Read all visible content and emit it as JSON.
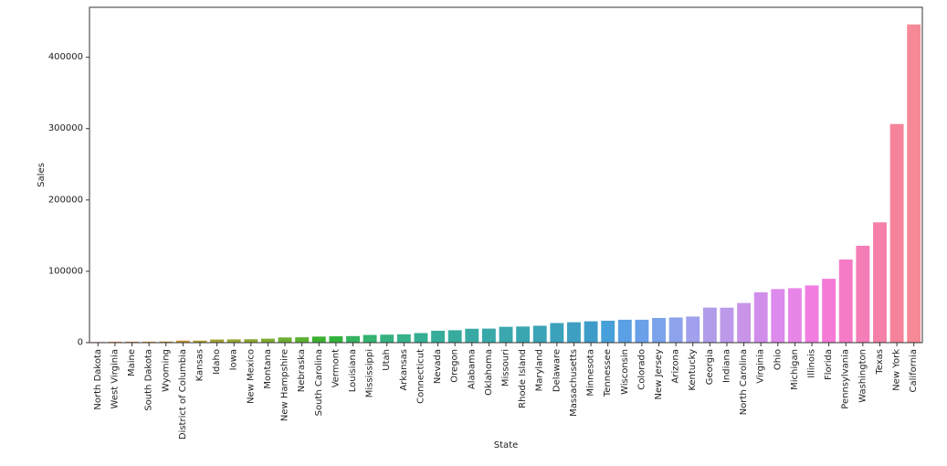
{
  "chart_data": {
    "type": "bar",
    "title": "",
    "xlabel": "State",
    "ylabel": "Sales",
    "ylim": [
      0,
      470000
    ],
    "yticks": [
      0,
      100000,
      200000,
      300000,
      400000
    ],
    "ytick_labels": [
      "0",
      "100000",
      "200000",
      "300000",
      "400000"
    ],
    "grid": false,
    "categories": [
      "North Dakota",
      "West Virginia",
      "Maine",
      "South Dakota",
      "Wyoming",
      "District of Columbia",
      "Kansas",
      "Idaho",
      "Iowa",
      "New Mexico",
      "Montana",
      "New Hampshire",
      "Nebraska",
      "South Carolina",
      "Vermont",
      "Louisiana",
      "Mississippi",
      "Utah",
      "Arkansas",
      "Connecticut",
      "Nevada",
      "Oregon",
      "Alabama",
      "Oklahoma",
      "Missouri",
      "Rhode Island",
      "Maryland",
      "Delaware",
      "Massachusetts",
      "Minnesota",
      "Tennessee",
      "Wisconsin",
      "Colorado",
      "New Jersey",
      "Arizona",
      "Kentucky",
      "Georgia",
      "Indiana",
      "North Carolina",
      "Virginia",
      "Ohio",
      "Michigan",
      "Illinois",
      "Florida",
      "Pennsylvania",
      "Washington",
      "Texas",
      "New York",
      "California"
    ],
    "values": [
      900,
      1200,
      1300,
      1300,
      1600,
      2900,
      2900,
      4400,
      4600,
      4800,
      5600,
      7300,
      7500,
      8500,
      8900,
      9200,
      10800,
      11200,
      11700,
      13400,
      16700,
      17400,
      19500,
      19700,
      22200,
      22600,
      23700,
      27500,
      28600,
      29900,
      30700,
      32100,
      32100,
      34600,
      35300,
      36600,
      49100,
      49000,
      55600,
      70600,
      75100,
      76300,
      80200,
      89500,
      116500,
      135800,
      168600,
      306400,
      446000
    ],
    "colors": [
      "#f77189",
      "#f7754f",
      "#e08031",
      "#e48932",
      "#c39532",
      "#c89632",
      "#ae9d31",
      "#a2a133",
      "#98a531",
      "#8ca731",
      "#7fab31",
      "#6eae32",
      "#5bb031",
      "#3bb030",
      "#31b33b",
      "#33b260",
      "#34b270",
      "#35b17f",
      "#36b18b",
      "#35ae93",
      "#36ad9a",
      "#37ab9e",
      "#38aaa3",
      "#38a8a9",
      "#39a7ad",
      "#3aa6b1",
      "#3ba4b6",
      "#3ca2bb",
      "#3d9fc2",
      "#3e9cc9",
      "#47a0d9",
      "#5b9fe4",
      "#6aa0e8",
      "#7ba3ea",
      "#8da3ec",
      "#a0a0ec",
      "#b09ce9",
      "#bd99ea",
      "#c794e8",
      "#d08eea",
      "#dc8aeb",
      "#e886e8",
      "#f07ddf",
      "#f47ad5",
      "#f57bc6",
      "#f47db7",
      "#f47fa8",
      "#f5839a",
      "#f58a96"
    ]
  }
}
